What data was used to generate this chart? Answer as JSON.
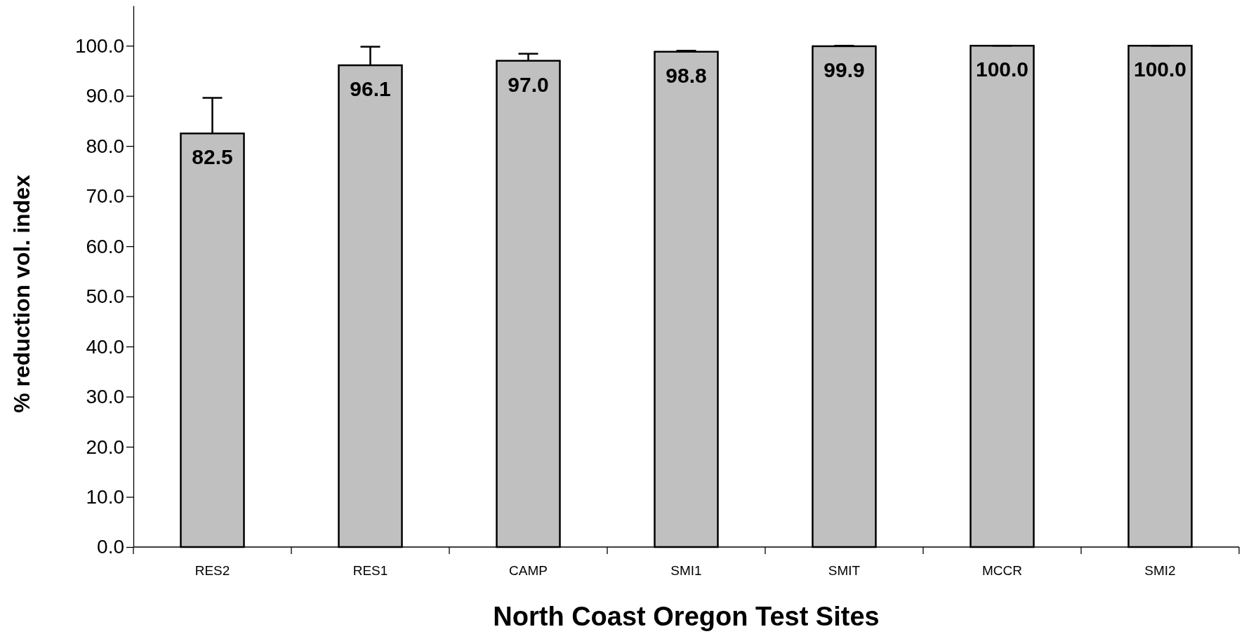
{
  "chart_data": {
    "type": "bar",
    "xlabel": "North Coast Oregon Test Sites",
    "ylabel": "% reduction vol. index",
    "categories": [
      "RES2",
      "RES1",
      "CAMP",
      "SMI1",
      "SMIT",
      "MCCR",
      "SMI2"
    ],
    "values": [
      82.5,
      96.1,
      97.0,
      98.8,
      99.9,
      100.0,
      100.0
    ],
    "errors": [
      [
        82.5,
        89.6
      ],
      [
        96.1,
        99.8
      ],
      [
        97.0,
        98.4
      ],
      [
        98.8,
        99.0
      ],
      [
        99.9,
        100.0
      ],
      [
        100.0,
        100.0
      ],
      [
        100.0,
        100.0
      ]
    ],
    "value_labels": [
      "82.5",
      "96.1",
      "97.0",
      "98.8",
      "99.9",
      "100.0",
      "100.0"
    ],
    "color": "#c0c0c0",
    "grid": false,
    "ylim": [
      0,
      108
    ],
    "yticks": [
      {
        "value": 0,
        "label": "0.0"
      },
      {
        "value": 10,
        "label": "10.0"
      },
      {
        "value": 20,
        "label": "20.0"
      },
      {
        "value": 30,
        "label": "30.0"
      },
      {
        "value": 40,
        "label": "40.0"
      },
      {
        "value": 50,
        "label": "50.0"
      },
      {
        "value": 60,
        "label": "60.0"
      },
      {
        "value": 70,
        "label": "70.0"
      },
      {
        "value": 80,
        "label": "80.0"
      },
      {
        "value": 90,
        "label": "90.0"
      },
      {
        "value": 100,
        "label": "100.0"
      }
    ]
  }
}
